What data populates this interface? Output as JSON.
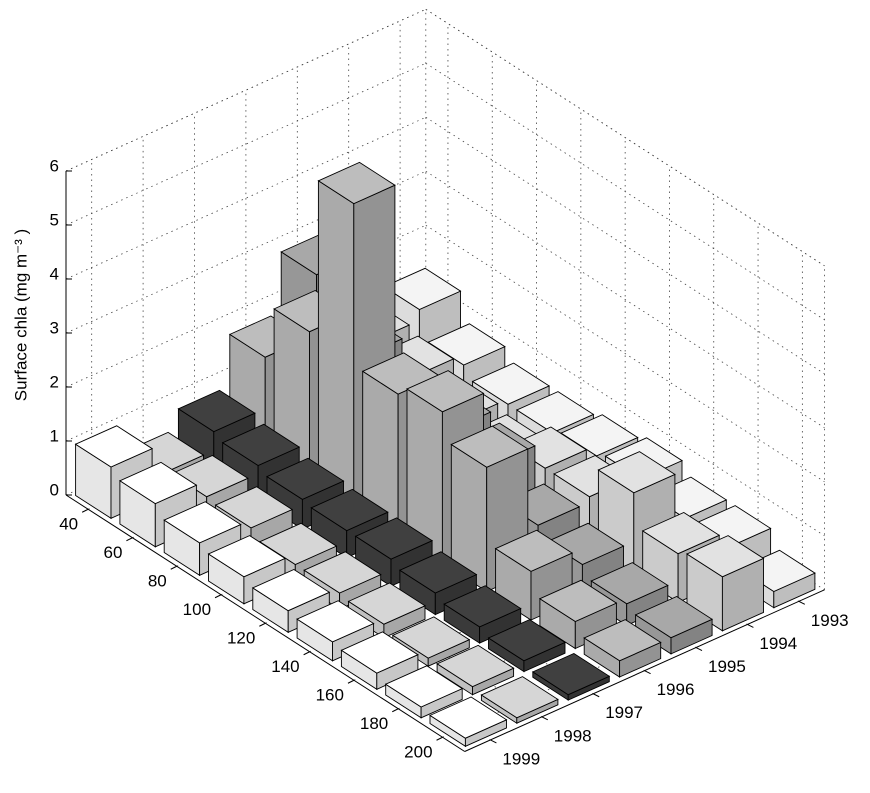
{
  "chart_data": {
    "type": "bar3d",
    "zlabel": "Surface chla  (mg m⁻³ )",
    "categories": [
      40,
      60,
      80,
      100,
      120,
      140,
      160,
      180,
      200
    ],
    "series": [
      {
        "name": "1993",
        "color": "#f4f4f4",
        "values": [
          1.3,
          0.8,
          0.6,
          0.6,
          0.7,
          0.8,
          0.6,
          0.6,
          0.3
        ]
      },
      {
        "name": "1994",
        "color": "#e2e2e2",
        "values": [
          1.1,
          1.0,
          0.7,
          0.6,
          0.9,
          0.9,
          1.5,
          0.9,
          1.0
        ]
      },
      {
        "name": "1995",
        "color": "#a8a8a8",
        "values": [
          2.8,
          1.8,
          1.2,
          1.5,
          1.4,
          0.8,
          0.6,
          0.4,
          0.3
        ]
      },
      {
        "name": "1996",
        "color": "#bdbdbd",
        "values": [
          1.7,
          2.7,
          5.6,
          2.6,
          2.8,
          2.3,
          0.9,
          0.5,
          0.3
        ]
      },
      {
        "name": "1997",
        "color": "#404040",
        "values": [
          0.75,
          0.65,
          0.55,
          0.5,
          0.5,
          0.4,
          0.3,
          0.2,
          0.1
        ]
      },
      {
        "name": "1998",
        "color": "#d6d6d6",
        "values": [
          0.4,
          0.5,
          0.45,
          0.3,
          0.3,
          0.25,
          0.15,
          0.15,
          0.1
        ]
      },
      {
        "name": "1999",
        "color": "#ffffff",
        "values": [
          0.95,
          0.8,
          0.6,
          0.5,
          0.4,
          0.35,
          0.3,
          0.2,
          0.15
        ]
      }
    ],
    "zlim": [
      0,
      6
    ],
    "zticks": [
      0,
      1,
      2,
      3,
      4,
      5,
      6
    ],
    "grid": true
  }
}
